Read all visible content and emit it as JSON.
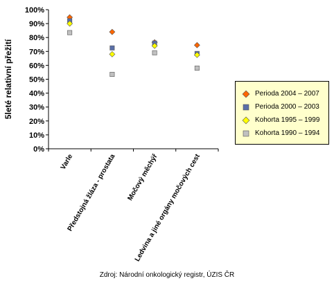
{
  "chart_data": {
    "type": "scatter",
    "title": "",
    "ylabel": "5leté relativní přežití",
    "xlabel": "",
    "ylim": [
      0,
      100
    ],
    "yticks": [
      "0%",
      "10%",
      "20%",
      "30%",
      "40%",
      "50%",
      "60%",
      "70%",
      "80%",
      "90%",
      "100%"
    ],
    "categories": [
      "Varle",
      "Předstojná žláza - prostata",
      "Močový měchýř",
      "Ledvina a jiné orgány močových cest"
    ],
    "series": [
      {
        "name": "Perioda 2004 – 2007",
        "marker": "diamond",
        "color": "#ff6600",
        "values": [
          94.5,
          84,
          76.5,
          74.5
        ]
      },
      {
        "name": "Perioda 2000 – 2003",
        "marker": "square",
        "color": "#5a6fa8",
        "values": [
          92,
          72.5,
          76,
          68.5
        ]
      },
      {
        "name": "Kohorta 1995 – 1999",
        "marker": "diamond",
        "color": "#ffff00",
        "values": [
          90,
          68,
          74,
          67.5
        ]
      },
      {
        "name": "Kohorta 1990 – 1994",
        "marker": "square",
        "color": "#c0c0c0",
        "values": [
          83.5,
          53.5,
          69,
          58
        ]
      }
    ],
    "grid": false,
    "legend_position": "right"
  },
  "source_note": "Zdroj: Národní onkologický registr, ÚZIS ČR"
}
